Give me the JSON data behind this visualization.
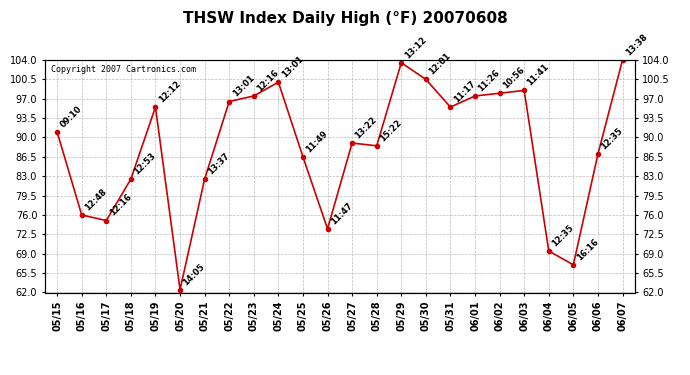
{
  "title": "THSW Index Daily High (°F) 20070608",
  "copyright": "Copyright 2007 Cartronics.com",
  "dates": [
    "05/15",
    "05/16",
    "05/17",
    "05/18",
    "05/19",
    "05/20",
    "05/21",
    "05/22",
    "05/23",
    "05/24",
    "05/25",
    "05/26",
    "05/27",
    "05/28",
    "05/29",
    "05/30",
    "05/31",
    "06/01",
    "06/02",
    "06/03",
    "06/04",
    "06/05",
    "06/06",
    "06/07"
  ],
  "values": [
    91.0,
    76.0,
    75.0,
    82.5,
    95.5,
    62.5,
    82.5,
    96.5,
    97.5,
    100.0,
    86.5,
    73.5,
    89.0,
    88.5,
    103.5,
    100.5,
    95.5,
    97.5,
    98.0,
    98.5,
    69.5,
    67.0,
    87.0,
    104.0
  ],
  "annotations": [
    "09:10",
    "12:48",
    "12:16",
    "12:53",
    "12:12",
    "14:05",
    "13:37",
    "13:01",
    "12:16",
    "13:01",
    "11:49",
    "11:47",
    "13:22",
    "15:22",
    "13:12",
    "12:01",
    "11:17",
    "11:26",
    "10:56",
    "11:41",
    "12:35",
    "16:16",
    "12:35",
    "13:38"
  ],
  "line_color": "#cc0000",
  "marker_color": "#cc0000",
  "bg_color": "#ffffff",
  "plot_bg_color": "#ffffff",
  "grid_color": "#bbbbbb",
  "ylim": [
    62.0,
    104.0
  ],
  "yticks": [
    62.0,
    65.5,
    69.0,
    72.5,
    76.0,
    79.5,
    83.0,
    86.5,
    90.0,
    93.5,
    97.0,
    100.5,
    104.0
  ],
  "title_fontsize": 11,
  "annotation_fontsize": 6,
  "copyright_fontsize": 6,
  "tick_fontsize": 7
}
